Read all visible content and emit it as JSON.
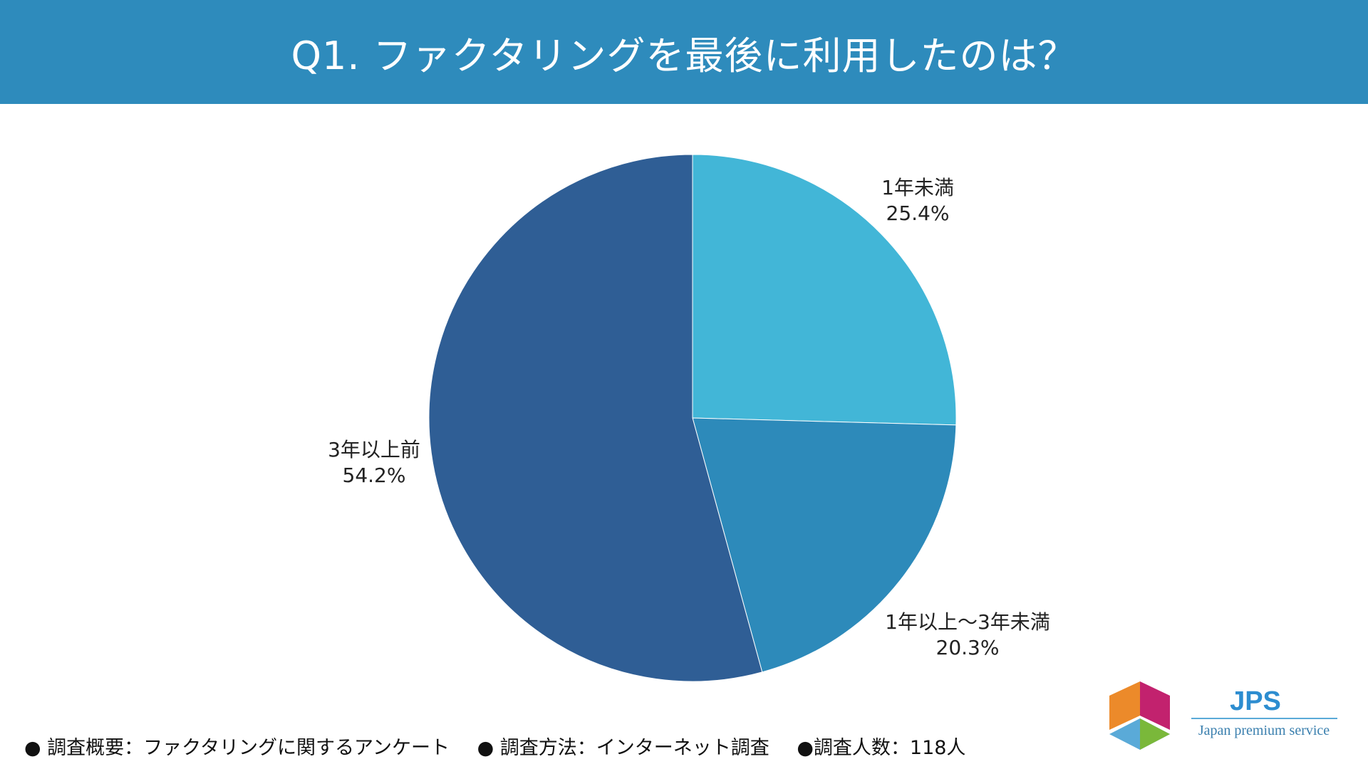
{
  "header": {
    "title": "Q1. ファクタリングを最後に利用したのは？"
  },
  "chart_data": {
    "type": "pie",
    "title": "Q1. ファクタリングを最後に利用したのは？",
    "start": "12 o'clock, clockwise",
    "slices": [
      {
        "label": "1年未満",
        "value": 25.4,
        "value_label": "25.4%",
        "color": "#42b6d7"
      },
      {
        "label": "1年以上〜3年未満",
        "value": 20.3,
        "value_label": "20.3%",
        "color": "#2d8aba"
      },
      {
        "label": "3年以上前",
        "value": 54.2,
        "value_label": "54.2%",
        "color": "#2f5e95"
      }
    ],
    "legend": "none"
  },
  "footer": {
    "items": [
      "● 調査概要：ファクタリングに関するアンケート",
      "● 調査方法：インターネット調査",
      "●調査人数：118人"
    ]
  },
  "logo": {
    "text": "JPS",
    "subtitle": "Japan premium service"
  }
}
